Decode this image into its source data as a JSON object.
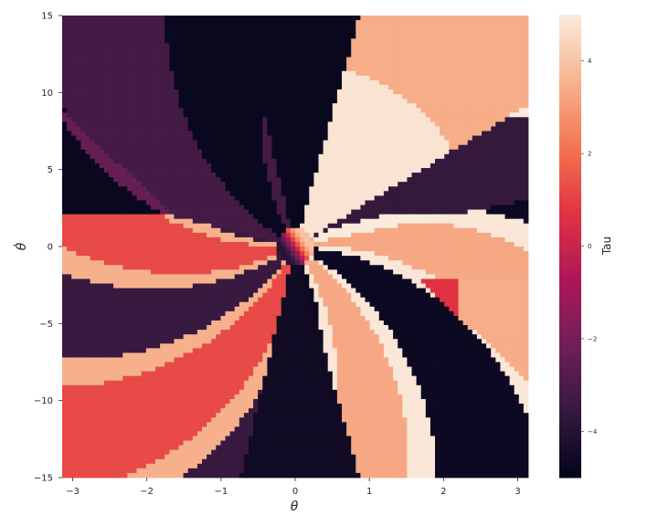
{
  "chart_data": {
    "type": "heatmap",
    "title": "",
    "xlabel": "θ",
    "ylabel": "θ̇",
    "xlim": [
      -3.14159,
      3.14159
    ],
    "ylim": [
      -15,
      15
    ],
    "x_ticks": [
      -3,
      -2,
      -1,
      0,
      1,
      2,
      3
    ],
    "y_ticks": [
      -15,
      -10,
      -5,
      0,
      5,
      10,
      15
    ],
    "x_tick_labels": [
      "−3",
      "−2",
      "−1",
      "0",
      "1",
      "2",
      "3"
    ],
    "y_tick_labels": [
      "−15",
      "−10",
      "−5",
      "0",
      "5",
      "10",
      "15"
    ],
    "colorbar": {
      "label": "Tau",
      "range": [
        -5,
        5
      ],
      "ticks": [
        -4,
        -2,
        0,
        2,
        4
      ],
      "tick_labels": [
        "−4",
        "−2",
        "0",
        "2",
        "4"
      ],
      "colormap": "rocket",
      "stops": [
        "#03051a",
        "#35193e",
        "#701f57",
        "#ad1759",
        "#e13342",
        "#f37651",
        "#f6b48f",
        "#faebdd"
      ]
    },
    "grid": false,
    "resolution": {
      "nx": 100,
      "ny": 100
    },
    "tau_regions_note_free": true
  }
}
